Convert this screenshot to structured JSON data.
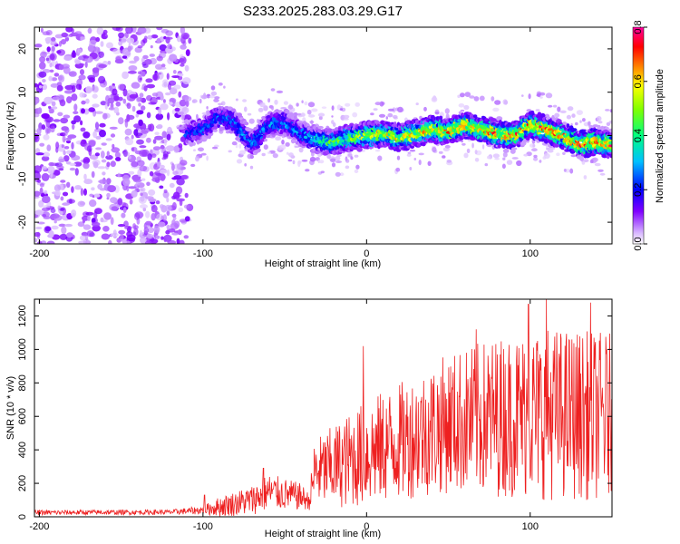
{
  "title": "S233.2025.283.03.29.G17",
  "chart_data": [
    {
      "type": "heatmap",
      "name": "spectrogram",
      "xlabel": "Height of straight line (km)",
      "ylabel": "Frequency (Hz)",
      "xlim": [
        -203,
        150
      ],
      "ylim": [
        -25,
        25
      ],
      "xticks": [
        -200,
        -100,
        0,
        100
      ],
      "yticks": [
        -20,
        -10,
        0,
        10,
        20
      ],
      "colorbar": {
        "label": "Normalized spectral amplitude",
        "range": [
          0.0,
          0.8
        ],
        "ticks": [
          "0.0",
          "0.2",
          "0.4",
          "0.6",
          "0.8"
        ],
        "colors": [
          "#ffffff",
          "#cc99ff",
          "#8000ff",
          "#0000ff",
          "#00c0ff",
          "#00ff80",
          "#80ff00",
          "#ffff00",
          "#ff8000",
          "#ff0000",
          "#ff00a0"
        ]
      },
      "features": {
        "noise_region_x": [
          -203,
          -108
        ],
        "noise_amplitude": 0.1,
        "ridge": [
          {
            "x": -110,
            "f": 0.5
          },
          {
            "x": -100,
            "f": 1.5
          },
          {
            "x": -90,
            "f": 4.5
          },
          {
            "x": -80,
            "f": 3.0
          },
          {
            "x": -70,
            "f": -2.0
          },
          {
            "x": -60,
            "f": 2.5
          },
          {
            "x": -50,
            "f": 3.0
          },
          {
            "x": -40,
            "f": 0.5
          },
          {
            "x": -30,
            "f": -1.0
          },
          {
            "x": -20,
            "f": -1.5
          },
          {
            "x": -10,
            "f": -0.5
          },
          {
            "x": 0,
            "f": 0.0
          },
          {
            "x": 10,
            "f": 0.5
          },
          {
            "x": 20,
            "f": -0.5
          },
          {
            "x": 30,
            "f": 0.5
          },
          {
            "x": 40,
            "f": 1.5
          },
          {
            "x": 50,
            "f": 1.0
          },
          {
            "x": 60,
            "f": 2.5
          },
          {
            "x": 70,
            "f": 1.5
          },
          {
            "x": 80,
            "f": 0.5
          },
          {
            "x": 90,
            "f": 0.0
          },
          {
            "x": 100,
            "f": 2.5
          },
          {
            "x": 110,
            "f": 1.5
          },
          {
            "x": 120,
            "f": 0.0
          },
          {
            "x": 130,
            "f": -2.0
          },
          {
            "x": 140,
            "f": -1.5
          },
          {
            "x": 150,
            "f": -2.0
          }
        ],
        "ridge_amplitude": [
          {
            "x": -110,
            "a": 0.25
          },
          {
            "x": -80,
            "a": 0.3
          },
          {
            "x": -40,
            "a": 0.3
          },
          {
            "x": -20,
            "a": 0.5
          },
          {
            "x": 0,
            "a": 0.6
          },
          {
            "x": 50,
            "a": 0.7
          },
          {
            "x": 100,
            "a": 0.75
          },
          {
            "x": 150,
            "a": 0.75
          }
        ]
      }
    },
    {
      "type": "line",
      "name": "snr",
      "color": "#ee2020",
      "xlabel": "Height of straight line (km)",
      "ylabel": "SNR (10 * v/v)",
      "xlim": [
        -203,
        150
      ],
      "ylim": [
        0,
        1300
      ],
      "xticks": [
        -200,
        -100,
        0,
        100
      ],
      "yticks": [
        0,
        200,
        400,
        600,
        800,
        1000,
        1200
      ],
      "envelope": [
        {
          "x": -203,
          "base": 25,
          "spread": 15
        },
        {
          "x": -120,
          "base": 28,
          "spread": 15
        },
        {
          "x": -100,
          "base": 40,
          "spread": 25
        },
        {
          "x": -90,
          "base": 60,
          "spread": 60
        },
        {
          "x": -70,
          "base": 100,
          "spread": 90
        },
        {
          "x": -60,
          "base": 150,
          "spread": 110
        },
        {
          "x": -40,
          "base": 120,
          "spread": 80
        },
        {
          "x": -35,
          "base": 90,
          "spread": 50
        },
        {
          "x": -32,
          "base": 260,
          "spread": 200
        },
        {
          "x": -20,
          "base": 300,
          "spread": 250
        },
        {
          "x": 0,
          "base": 380,
          "spread": 320
        },
        {
          "x": 20,
          "base": 450,
          "spread": 350
        },
        {
          "x": 50,
          "base": 560,
          "spread": 420
        },
        {
          "x": 80,
          "base": 600,
          "spread": 480
        },
        {
          "x": 110,
          "base": 620,
          "spread": 520
        },
        {
          "x": 150,
          "base": 600,
          "spread": 500
        }
      ],
      "peaks": [
        {
          "x": -99,
          "y": 130
        },
        {
          "x": -63,
          "y": 290
        },
        {
          "x": -2,
          "y": 1020
        },
        {
          "x": 67,
          "y": 1120
        },
        {
          "x": 99,
          "y": 1270
        },
        {
          "x": 110,
          "y": 1300
        },
        {
          "x": 137,
          "y": 1280
        }
      ]
    }
  ]
}
